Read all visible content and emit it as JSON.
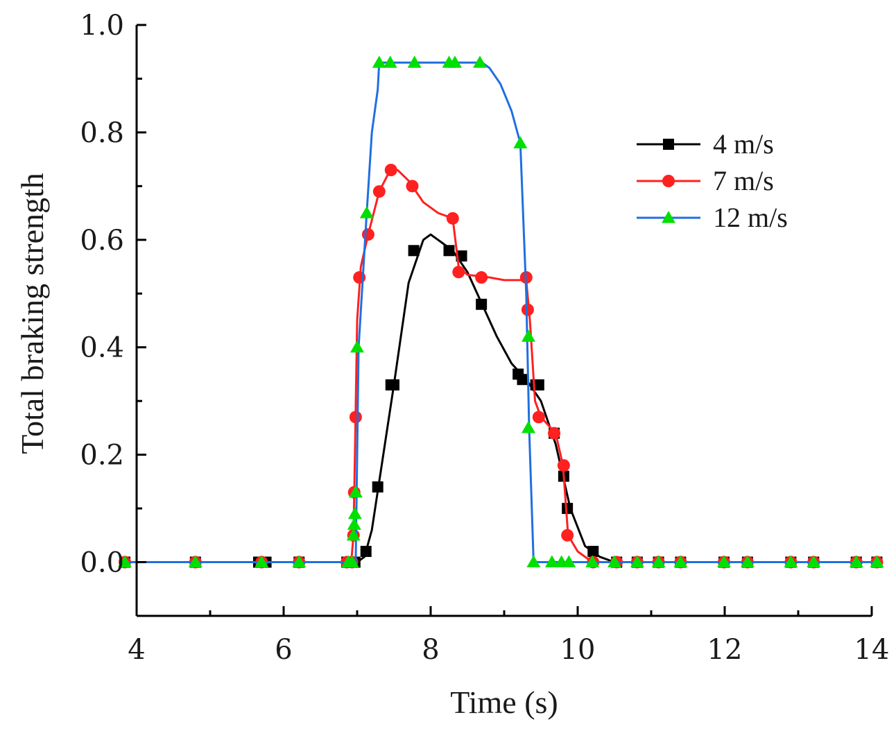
{
  "chart_data": {
    "type": "line",
    "title": "",
    "xlabel": "Time (s)",
    "ylabel": "Total braking strength",
    "xlim": [
      4,
      14
    ],
    "ylim": [
      -0.1,
      1.0
    ],
    "x_ticks": [
      4,
      6,
      8,
      10,
      12,
      14
    ],
    "x_tick_labels": [
      "4",
      "6",
      "8",
      "10",
      "12",
      "14"
    ],
    "y_ticks": [
      0.0,
      0.2,
      0.4,
      0.6,
      0.8,
      1.0
    ],
    "y_tick_labels": [
      "0.0",
      "0.2",
      "0.4",
      "0.6",
      "0.8",
      "1.0"
    ],
    "grid": false,
    "legend_position": "top-right",
    "series": [
      {
        "name": "4 m/s",
        "color": "#000000",
        "marker": "square",
        "markers": [
          [
            3.84,
            0
          ],
          [
            4.8,
            0
          ],
          [
            5.66,
            0
          ],
          [
            5.76,
            0
          ],
          [
            6.21,
            0
          ],
          [
            6.86,
            0
          ],
          [
            6.97,
            0
          ],
          [
            7.12,
            0.02
          ],
          [
            7.28,
            0.14
          ],
          [
            7.46,
            0.33
          ],
          [
            7.5,
            0.33
          ],
          [
            7.77,
            0.58
          ],
          [
            8.25,
            0.58
          ],
          [
            8.42,
            0.57
          ],
          [
            8.69,
            0.48
          ],
          [
            9.19,
            0.35
          ],
          [
            9.25,
            0.34
          ],
          [
            9.43,
            0.33
          ],
          [
            9.47,
            0.33
          ],
          [
            9.68,
            0.24
          ],
          [
            9.81,
            0.16
          ],
          [
            9.86,
            0.1
          ],
          [
            10.21,
            0.02
          ],
          [
            10.53,
            0
          ],
          [
            10.81,
            0
          ],
          [
            11.1,
            0
          ],
          [
            11.4,
            0
          ],
          [
            11.99,
            0
          ],
          [
            12.31,
            0
          ],
          [
            12.9,
            0
          ],
          [
            13.21,
            0
          ],
          [
            13.79,
            0
          ],
          [
            14.07,
            0
          ]
        ],
        "line": [
          [
            3.84,
            0
          ],
          [
            7.0,
            0
          ],
          [
            7.1,
            0.01
          ],
          [
            7.2,
            0.06
          ],
          [
            7.3,
            0.15
          ],
          [
            7.5,
            0.33
          ],
          [
            7.7,
            0.52
          ],
          [
            7.9,
            0.6
          ],
          [
            8.0,
            0.61
          ],
          [
            8.1,
            0.6
          ],
          [
            8.3,
            0.58
          ],
          [
            8.5,
            0.54
          ],
          [
            8.7,
            0.48
          ],
          [
            8.9,
            0.42
          ],
          [
            9.1,
            0.37
          ],
          [
            9.3,
            0.34
          ],
          [
            9.5,
            0.3
          ],
          [
            9.7,
            0.22
          ],
          [
            9.9,
            0.1
          ],
          [
            10.1,
            0.03
          ],
          [
            10.3,
            0.01
          ],
          [
            10.5,
            0
          ],
          [
            14.07,
            0
          ]
        ]
      },
      {
        "name": "7 m/s",
        "color": "#ff2020",
        "marker": "circle",
        "markers": [
          [
            3.84,
            0
          ],
          [
            4.8,
            0
          ],
          [
            5.7,
            0
          ],
          [
            6.21,
            0
          ],
          [
            6.86,
            0
          ],
          [
            6.93,
            0
          ],
          [
            6.95,
            0.05
          ],
          [
            6.96,
            0.13
          ],
          [
            6.98,
            0.27
          ],
          [
            7.03,
            0.53
          ],
          [
            7.15,
            0.61
          ],
          [
            7.3,
            0.69
          ],
          [
            7.46,
            0.73
          ],
          [
            7.75,
            0.7
          ],
          [
            8.3,
            0.64
          ],
          [
            8.38,
            0.54
          ],
          [
            8.69,
            0.53
          ],
          [
            9.3,
            0.53
          ],
          [
            9.32,
            0.47
          ],
          [
            9.47,
            0.27
          ],
          [
            9.68,
            0.24
          ],
          [
            9.81,
            0.18
          ],
          [
            9.86,
            0.05
          ],
          [
            10.21,
            0
          ],
          [
            10.53,
            0
          ],
          [
            10.81,
            0
          ],
          [
            11.1,
            0
          ],
          [
            11.4,
            0
          ],
          [
            11.99,
            0
          ],
          [
            12.31,
            0
          ],
          [
            12.9,
            0
          ],
          [
            13.21,
            0
          ],
          [
            13.79,
            0
          ],
          [
            14.07,
            0
          ]
        ],
        "line": [
          [
            3.84,
            0
          ],
          [
            6.92,
            0
          ],
          [
            6.95,
            0.05
          ],
          [
            6.97,
            0.2
          ],
          [
            7.0,
            0.45
          ],
          [
            7.05,
            0.55
          ],
          [
            7.15,
            0.61
          ],
          [
            7.3,
            0.69
          ],
          [
            7.45,
            0.73
          ],
          [
            7.55,
            0.73
          ],
          [
            7.7,
            0.71
          ],
          [
            7.9,
            0.67
          ],
          [
            8.1,
            0.65
          ],
          [
            8.3,
            0.64
          ],
          [
            8.38,
            0.55
          ],
          [
            8.5,
            0.535
          ],
          [
            8.8,
            0.53
          ],
          [
            9.0,
            0.525
          ],
          [
            9.3,
            0.525
          ],
          [
            9.35,
            0.45
          ],
          [
            9.42,
            0.3
          ],
          [
            9.5,
            0.27
          ],
          [
            9.7,
            0.24
          ],
          [
            9.8,
            0.18
          ],
          [
            9.87,
            0.05
          ],
          [
            10.0,
            0.02
          ],
          [
            10.2,
            0
          ],
          [
            14.07,
            0
          ]
        ]
      },
      {
        "name": "12 m/s",
        "color": "#1f6fe0",
        "marker": "triangle",
        "markers": [
          [
            3.84,
            0
          ],
          [
            4.8,
            0
          ],
          [
            5.7,
            0
          ],
          [
            6.21,
            0
          ],
          [
            6.88,
            0
          ],
          [
            6.93,
            0
          ],
          [
            6.95,
            0.05
          ],
          [
            6.96,
            0.07
          ],
          [
            6.97,
            0.09
          ],
          [
            6.98,
            0.13
          ],
          [
            7.0,
            0.4
          ],
          [
            7.13,
            0.65
          ],
          [
            7.3,
            0.93
          ],
          [
            7.45,
            0.93
          ],
          [
            7.78,
            0.93
          ],
          [
            8.25,
            0.93
          ],
          [
            8.33,
            0.93
          ],
          [
            8.67,
            0.93
          ],
          [
            9.22,
            0.78
          ],
          [
            9.33,
            0.42
          ],
          [
            9.33,
            0.25
          ],
          [
            9.4,
            0
          ],
          [
            9.65,
            0
          ],
          [
            9.78,
            0
          ],
          [
            9.88,
            0
          ],
          [
            10.2,
            0
          ],
          [
            10.5,
            0
          ],
          [
            10.81,
            0
          ],
          [
            11.1,
            0
          ],
          [
            11.4,
            0
          ],
          [
            11.99,
            0
          ],
          [
            12.31,
            0
          ],
          [
            12.9,
            0
          ],
          [
            13.21,
            0
          ],
          [
            13.79,
            0
          ],
          [
            14.07,
            0
          ]
        ],
        "line": [
          [
            3.84,
            0
          ],
          [
            6.98,
            0
          ],
          [
            7.02,
            0.4
          ],
          [
            7.13,
            0.65
          ],
          [
            7.2,
            0.8
          ],
          [
            7.28,
            0.88
          ],
          [
            7.3,
            0.93
          ],
          [
            8.7,
            0.93
          ],
          [
            8.8,
            0.92
          ],
          [
            8.95,
            0.89
          ],
          [
            9.1,
            0.84
          ],
          [
            9.22,
            0.78
          ],
          [
            9.3,
            0.5
          ],
          [
            9.34,
            0.25
          ],
          [
            9.4,
            0
          ],
          [
            14.07,
            0
          ]
        ]
      }
    ]
  }
}
